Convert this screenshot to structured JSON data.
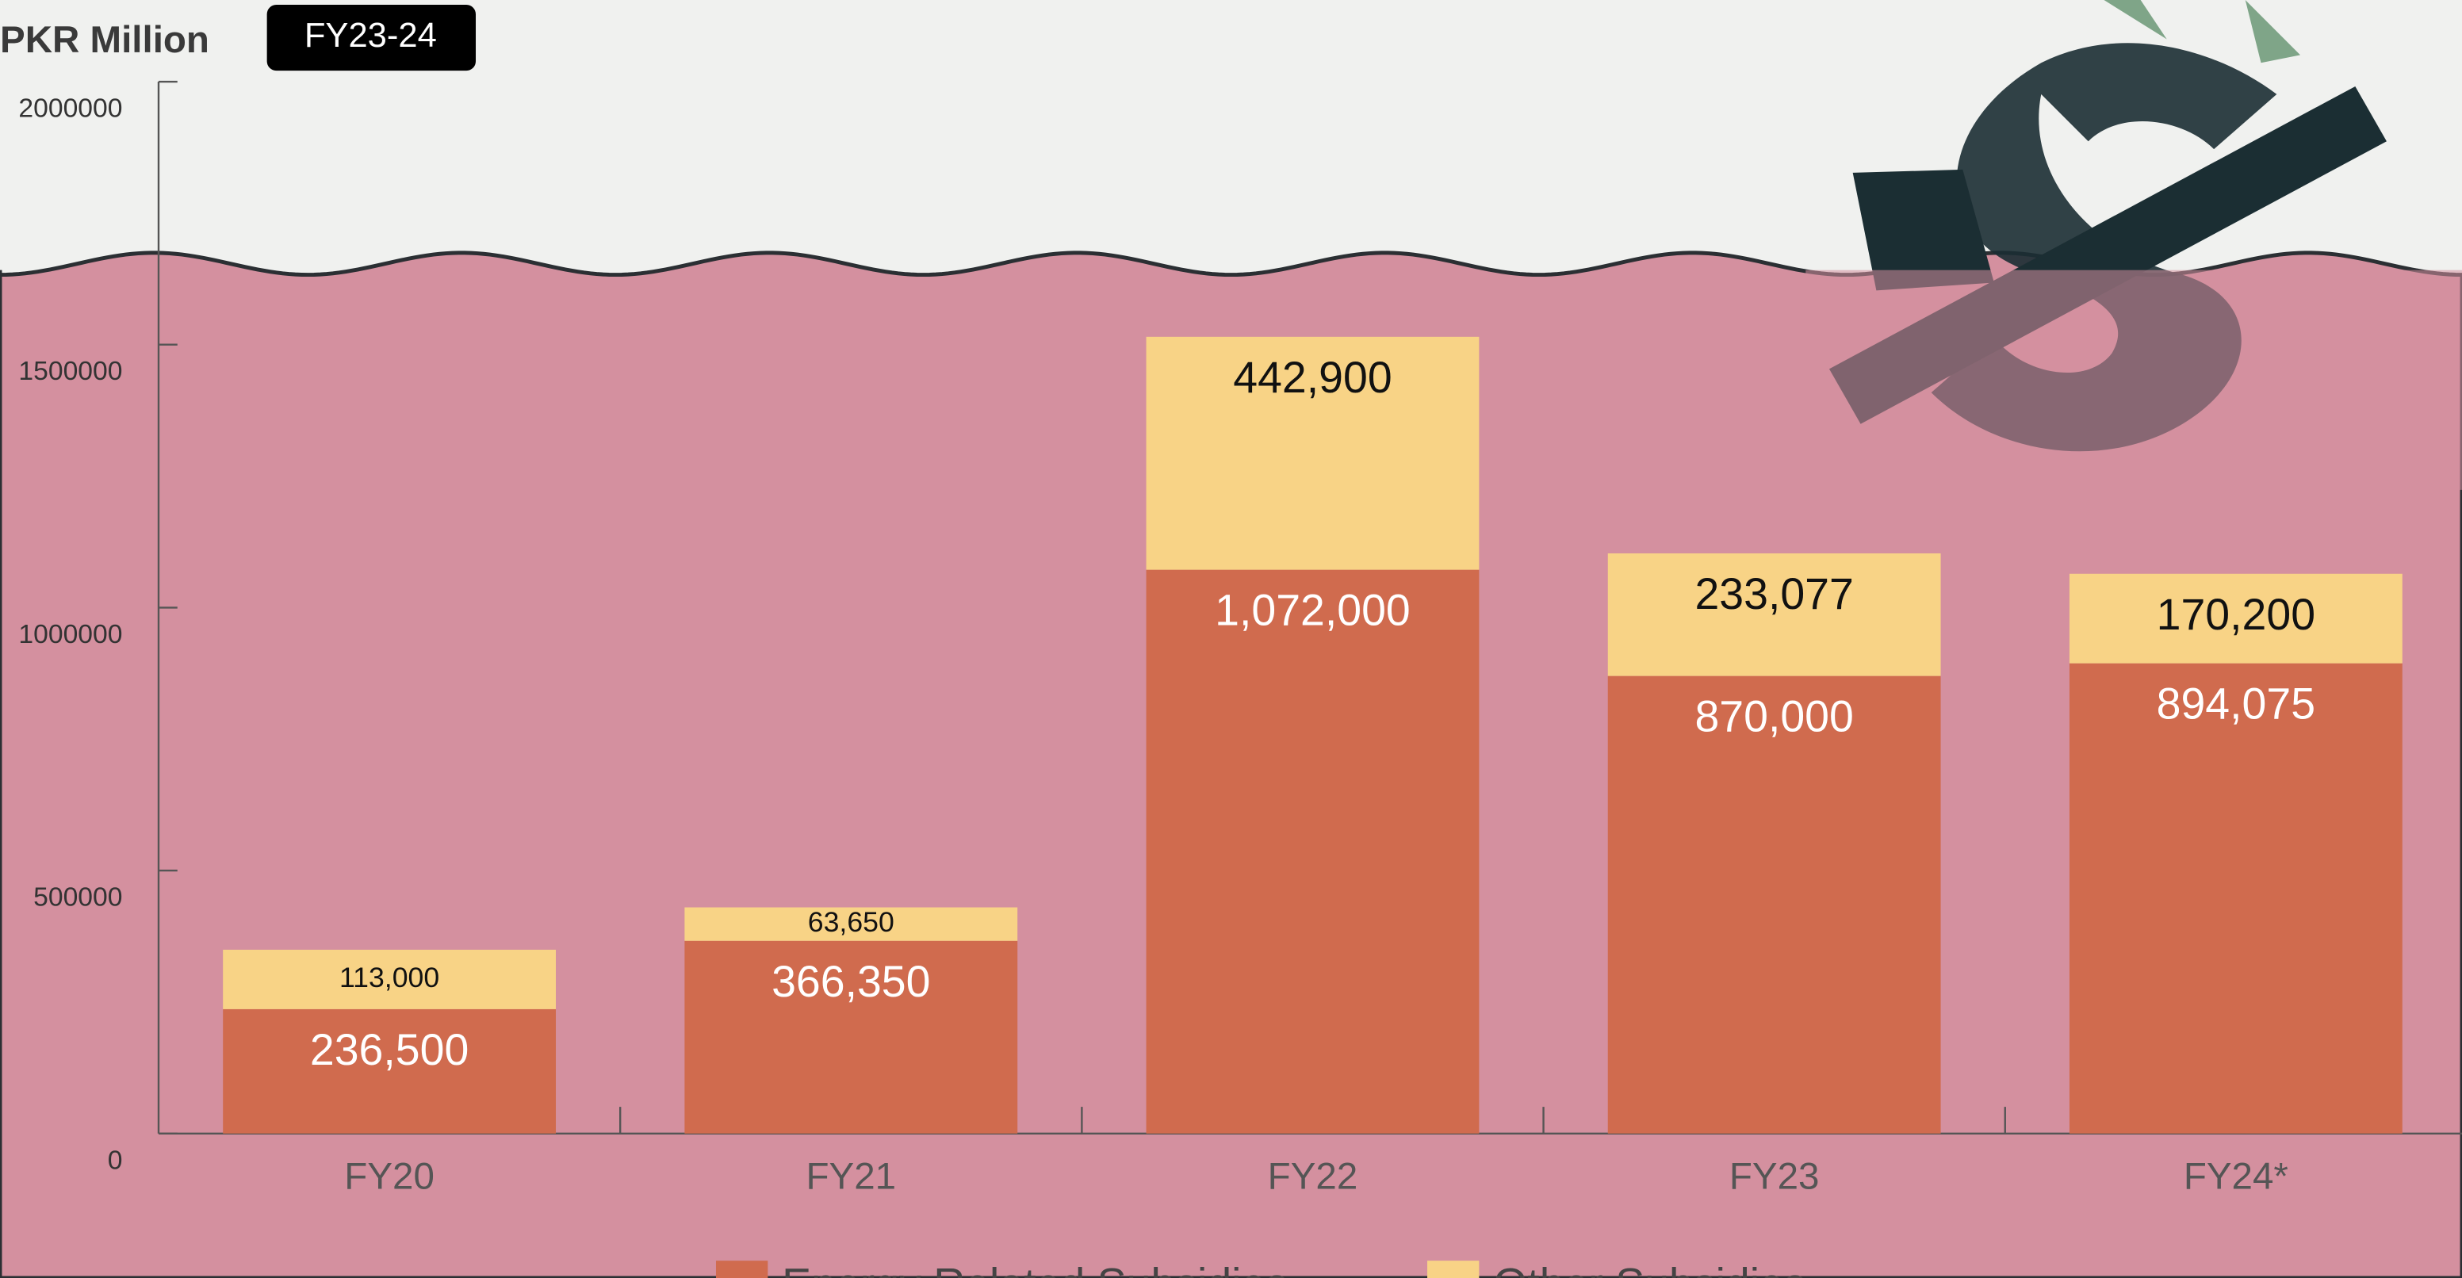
{
  "chart_data": {
    "type": "stacked_bar",
    "title": "PKR Million",
    "badge": "FY23-24",
    "categories": [
      "FY20",
      "FY21",
      "FY22",
      "FY23",
      "FY24*"
    ],
    "series": [
      {
        "name": "Energy Related Subsidies",
        "color": "#d06b4e",
        "values": [
          236500,
          366350,
          1072000,
          870000,
          894075
        ],
        "value_labels": [
          "236,500",
          "366,350",
          "1,072,000",
          "870,000",
          "894,075"
        ]
      },
      {
        "name": "Other Subsidies",
        "color": "#f8d386",
        "values": [
          113000,
          63650,
          442900,
          233077,
          170200
        ],
        "value_labels": [
          "113,000",
          "63,650",
          "442,900",
          "233,077",
          "170,200"
        ]
      }
    ],
    "ylim": [
      0,
      2000000
    ],
    "yticks": [
      0,
      500000,
      1000000,
      1500000,
      2000000
    ]
  }
}
